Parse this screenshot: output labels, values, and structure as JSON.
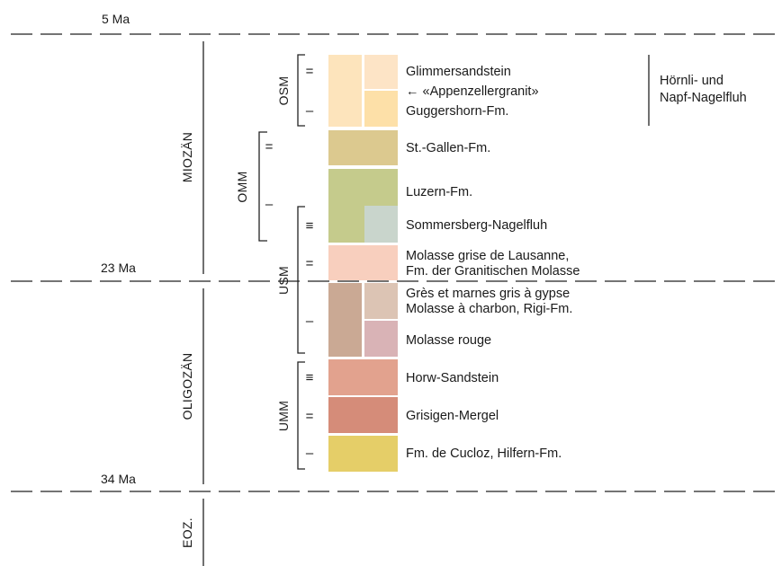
{
  "ages": {
    "top": "5 Ma",
    "mid": "23 Ma",
    "bottom": "34 Ma"
  },
  "epochs": {
    "miocene": "MIOZÄN",
    "oligocene": "OLIGOZÄN",
    "eocene": "EOZ."
  },
  "groups": {
    "osm": "OSM",
    "omm": "OMM",
    "usm": "USM",
    "umm": "UMM"
  },
  "marks": {
    "double": "=",
    "triple": "≡",
    "single": "–"
  },
  "units": {
    "glimmersandstein": "Glimmersandstein",
    "appenzellergranit": "← «Appenzellergranit»",
    "guggershorn": "Guggershorn-Fm.",
    "stgallen": "St.-Gallen-Fm.",
    "luzern": "Luzern-Fm.",
    "sommersberg": "Sommersberg-Nagelfluh",
    "lausanne_1": "Molasse grise de Lausanne,",
    "lausanne_2": "Fm. der Granitischen Molasse",
    "gres_1": "Grès et marnes gris à gypse",
    "gres_2": "Molasse à charbon, Rigi-Fm.",
    "rouge": "Molasse rouge",
    "horw": "Horw-Sandstein",
    "grisigen": "Grisigen-Mergel",
    "cucloz": "Fm. de Cucloz, Hilfern-Fm."
  },
  "bracket_note": {
    "line1": "Hörnli- und",
    "line2": "Napf-Nagelfluh"
  },
  "colors": {
    "osm_main": "#fde4bc",
    "osm_top_right": "#fde4c6",
    "osm_bottom_right": "#fde0a8",
    "stgallen": "#dcc98f",
    "luzern": "#c5cb8c",
    "sommersberg": "#c9d5cc",
    "lausanne": "#f8cfbe",
    "usm_left": "#caa994",
    "gres": "#dcc4b4",
    "rouge": "#d9b3b6",
    "horw": "#e2a28e",
    "grisigen": "#d58c79",
    "cucloz": "#e5ce68"
  }
}
